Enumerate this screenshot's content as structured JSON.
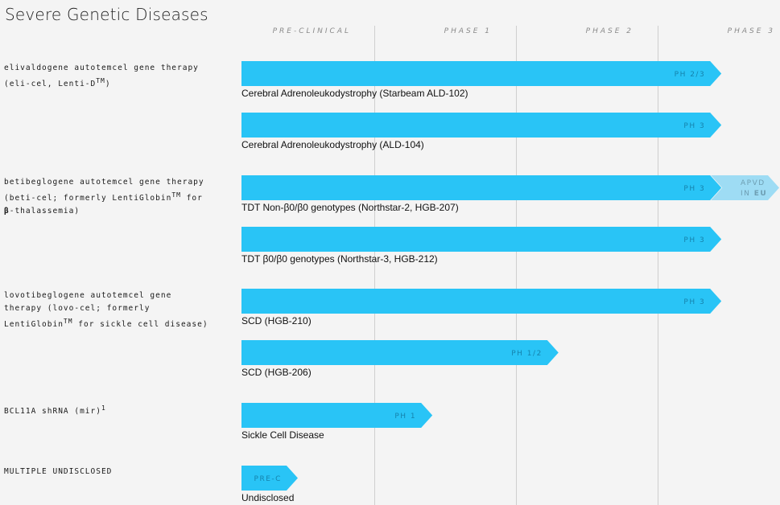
{
  "title": "Severe Genetic Diseases",
  "colors": {
    "bar": "#29c4f6",
    "approved": "#9edcf4",
    "bar_text": "#1583ad",
    "approved_text": "#6e9fb3"
  },
  "chart_data": {
    "type": "bar",
    "orientation": "horizontal",
    "axis_categories": [
      "PRE-CLINICAL",
      "PHASE 1",
      "PHASE 2",
      "PHASE 3"
    ],
    "grid": true,
    "programs": [
      {
        "label_lines": [
          "elivaldogene autotemcel gene therapy",
          "(eli-cel, Lenti-D",
          "TM",
          ")"
        ],
        "label_html": "elivaldogene autotemcel gene therapy<br>(eli-cel, Lenti-D<sup>TM</sup>)",
        "bars": [
          {
            "indication": "Cerebral Adrenoleukodystrophy (Starbeam ALD-102)",
            "stage": "PH 2/3",
            "progress": 3.45
          },
          {
            "indication": "Cerebral Adrenoleukodystrophy (ALD-104)",
            "stage": "PH 3",
            "progress": 3.45
          }
        ]
      },
      {
        "label_html": "betibeglogene autotemcel gene therapy<br>(beti-cel; formerly LentiGlobin<sup>TM</sup> for<br><b>β</b>-thalassemia)",
        "bars": [
          {
            "indication": "TDT Non-β0/β0 genotypes (Northstar-2, HGB-207)",
            "stage": "PH 3",
            "progress": 3.45,
            "approved": {
              "line1": "APVD",
              "line2": "IN ",
              "line2_bold": "EU"
            }
          },
          {
            "indication": "TDT β0/β0 genotypes (Northstar-3, HGB-212)",
            "stage": "PH 3",
            "progress": 3.45
          }
        ]
      },
      {
        "label_html": "lovotibeglogene autotemcel gene<br>therapy (lovo-cel; formerly<br>LentiGlobin<sup>TM</sup> for sickle cell disease)",
        "bars": [
          {
            "indication": "SCD (HGB-210)",
            "stage": "PH 3",
            "progress": 3.45
          },
          {
            "indication": "SCD (HGB-206)",
            "stage": "PH 1/2",
            "progress": 2.3
          }
        ]
      },
      {
        "label_html": "BCL11A shRNA (mir)<sup>1</sup>",
        "bars": [
          {
            "indication": "Sickle Cell Disease",
            "stage": "PH 1",
            "progress": 1.41
          }
        ]
      },
      {
        "label_html": "MULTIPLE UNDISCLOSED",
        "bars": [
          {
            "indication": "Undisclosed",
            "stage": "PRE-C",
            "progress": 0.46
          }
        ]
      }
    ]
  }
}
